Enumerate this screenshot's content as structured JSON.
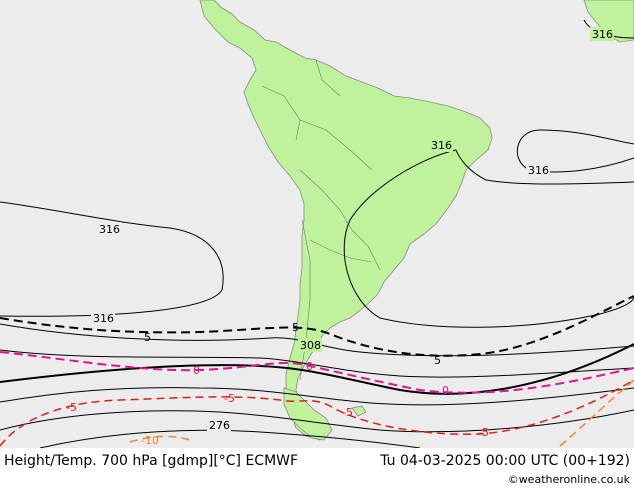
{
  "footer": {
    "left": "Height/Temp. 700 hPa [gdmp][°C] ECMWF",
    "right": "Tu 04-03-2025 00:00 UTC (00+192)",
    "credit": "©weatheronline.co.uk"
  },
  "colors": {
    "ocean": "#ececec",
    "land": "#bff29a",
    "coast": "#8a8a8a",
    "height_contour": "#000000",
    "temp_minus5": "#e31a1c",
    "temp_0": "#e0148c",
    "temp_5": "#000000",
    "temp_minus10": "#f5862a"
  },
  "contour_labels": {
    "h316_a": "316",
    "h316_b": "316",
    "h316_c": "316",
    "h316_d": "316",
    "h316_e": "316",
    "h308": "308",
    "h276": "276",
    "t5_a": "5",
    "t5_b": "5",
    "t5_c": "5",
    "t0_a": "0",
    "t0_b": "0",
    "t0_c": "0",
    "tm5_a": "-5",
    "tm5_b": "-5",
    "tm5_c": "-5",
    "tm5_d": "-5",
    "tm10": "-10"
  }
}
